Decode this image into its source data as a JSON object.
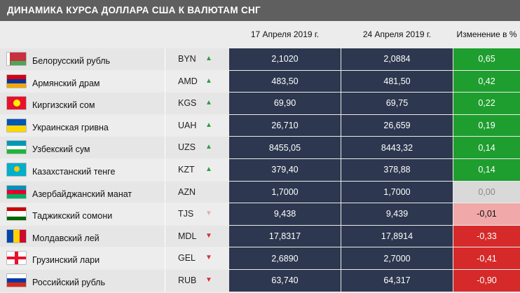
{
  "title": "ДИНАМИКА КУРСА ДОЛЛАРА США К ВАЛЮТАМ СНГ",
  "chart_data": {
    "type": "table",
    "columns": [
      "17 Апреля 2019 г.",
      "24 Апреля 2019 г.",
      "Изменение в %"
    ],
    "rows": [
      {
        "name": "Белорусский рубль",
        "code": "BYN",
        "v1": "2,1020",
        "v2": "2,0884",
        "change": "0,65",
        "trend": "up",
        "flag": "by"
      },
      {
        "name": "Армянский драм",
        "code": "AMD",
        "v1": "483,50",
        "v2": "481,50",
        "change": "0,42",
        "trend": "up",
        "flag": "am"
      },
      {
        "name": "Киргизский сом",
        "code": "KGS",
        "v1": "69,90",
        "v2": "69,75",
        "change": "0,22",
        "trend": "up",
        "flag": "kg"
      },
      {
        "name": "Украинская гривна",
        "code": "UAH",
        "v1": "26,710",
        "v2": "26,659",
        "change": "0,19",
        "trend": "up",
        "flag": "ua"
      },
      {
        "name": "Узбекский сум",
        "code": "UZS",
        "v1": "8455,05",
        "v2": "8443,32",
        "change": "0,14",
        "trend": "up",
        "flag": "uz"
      },
      {
        "name": "Казахстанский тенге",
        "code": "KZT",
        "v1": "379,40",
        "v2": "378,88",
        "change": "0,14",
        "trend": "up",
        "flag": "kz"
      },
      {
        "name": "Азербайджанский манат",
        "code": "AZN",
        "v1": "1,7000",
        "v2": "1,7000",
        "change": "0,00",
        "trend": "none",
        "flag": "az"
      },
      {
        "name": "Таджикский сомони",
        "code": "TJS",
        "v1": "9,438",
        "v2": "9,439",
        "change": "-0,01",
        "trend": "down-light",
        "flag": "tj"
      },
      {
        "name": "Молдавский лей",
        "code": "MDL",
        "v1": "17,8317",
        "v2": "17,8914",
        "change": "-0,33",
        "trend": "down",
        "flag": "md"
      },
      {
        "name": "Грузинский лари",
        "code": "GEL",
        "v1": "2,6890",
        "v2": "2,7000",
        "change": "-0,41",
        "trend": "down",
        "flag": "ge"
      },
      {
        "name": "Российский рубль",
        "code": "RUB",
        "v1": "63,740",
        "v2": "64,317",
        "change": "-0,90",
        "trend": "down",
        "flag": "ru"
      }
    ]
  },
  "colors": {
    "title_bg": "#5f5f5f",
    "value_cell": "#2d374f",
    "positive": "#1e9e2e",
    "zero": "#d9d9d9",
    "negative_light": "#f0a8a8",
    "negative": "#d62a2a",
    "arrow_up": "#2e9e3a",
    "arrow_down": "#d9302c",
    "arrow_down_light": "#f0a8a8"
  }
}
